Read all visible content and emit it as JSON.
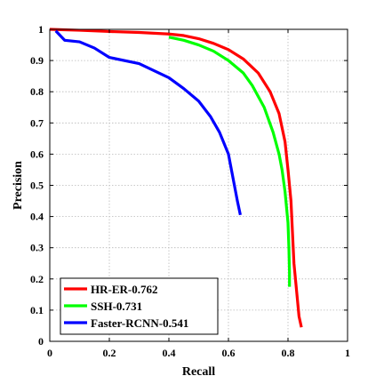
{
  "chart_data": {
    "type": "line",
    "xlabel": "Recall",
    "ylabel": "Precision",
    "xlim": [
      0,
      1
    ],
    "ylim": [
      0,
      1
    ],
    "xticks": [
      0,
      0.2,
      0.4,
      0.6,
      0.8,
      1
    ],
    "xtick_labels": [
      "0",
      "0.2",
      "0.4",
      "0.6",
      "0.8",
      "1"
    ],
    "yticks": [
      0,
      0.1,
      0.2,
      0.3,
      0.4,
      0.5,
      0.6,
      0.7,
      0.8,
      0.9,
      1
    ],
    "ytick_labels": [
      "0",
      "0.1",
      "0.2",
      "0.3",
      "0.4",
      "0.5",
      "0.6",
      "0.7",
      "0.8",
      "0.9",
      "1"
    ],
    "grid": true,
    "legend_position": "bottom-left",
    "series": [
      {
        "name": "HR-ER-0.762",
        "color": "#ff0000",
        "points": [
          [
            0.0,
            1.0
          ],
          [
            0.1,
            0.997
          ],
          [
            0.2,
            0.993
          ],
          [
            0.3,
            0.99
          ],
          [
            0.4,
            0.985
          ],
          [
            0.45,
            0.98
          ],
          [
            0.5,
            0.97
          ],
          [
            0.55,
            0.955
          ],
          [
            0.6,
            0.935
          ],
          [
            0.65,
            0.905
          ],
          [
            0.7,
            0.86
          ],
          [
            0.74,
            0.8
          ],
          [
            0.77,
            0.73
          ],
          [
            0.79,
            0.64
          ],
          [
            0.8,
            0.55
          ],
          [
            0.81,
            0.45
          ],
          [
            0.815,
            0.35
          ],
          [
            0.82,
            0.25
          ],
          [
            0.83,
            0.15
          ],
          [
            0.837,
            0.08
          ],
          [
            0.845,
            0.045
          ]
        ]
      },
      {
        "name": "SSH-0.731",
        "color": "#00ff00",
        "points": [
          [
            0.4,
            0.975
          ],
          [
            0.45,
            0.965
          ],
          [
            0.5,
            0.95
          ],
          [
            0.55,
            0.93
          ],
          [
            0.6,
            0.9
          ],
          [
            0.65,
            0.86
          ],
          [
            0.68,
            0.82
          ],
          [
            0.72,
            0.75
          ],
          [
            0.75,
            0.67
          ],
          [
            0.77,
            0.6
          ],
          [
            0.78,
            0.55
          ],
          [
            0.79,
            0.48
          ],
          [
            0.8,
            0.38
          ],
          [
            0.803,
            0.3
          ],
          [
            0.805,
            0.22
          ],
          [
            0.805,
            0.175
          ]
        ]
      },
      {
        "name": "Faster-RCNN-0.541",
        "color": "#0000ff",
        "points": [
          [
            0.02,
            0.995
          ],
          [
            0.05,
            0.965
          ],
          [
            0.1,
            0.96
          ],
          [
            0.15,
            0.94
          ],
          [
            0.2,
            0.91
          ],
          [
            0.3,
            0.89
          ],
          [
            0.4,
            0.845
          ],
          [
            0.45,
            0.81
          ],
          [
            0.5,
            0.77
          ],
          [
            0.54,
            0.72
          ],
          [
            0.57,
            0.67
          ],
          [
            0.6,
            0.6
          ],
          [
            0.61,
            0.55
          ],
          [
            0.62,
            0.5
          ],
          [
            0.63,
            0.45
          ],
          [
            0.64,
            0.405
          ]
        ]
      }
    ]
  }
}
